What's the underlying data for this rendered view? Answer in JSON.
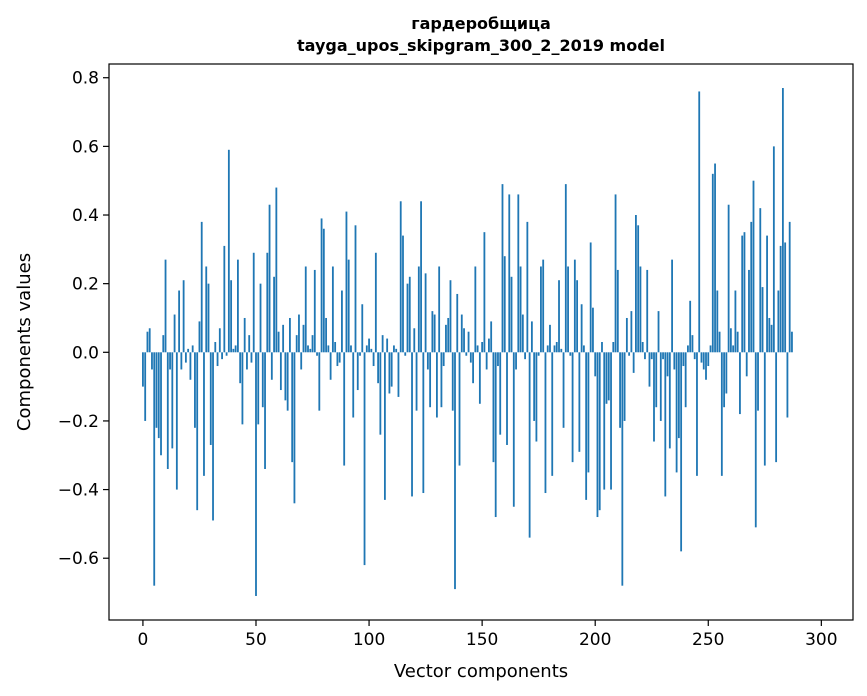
{
  "chart_data": {
    "type": "bar",
    "title_lines": [
      "гардеробщица",
      "tayga_upos_skipgram_300_2_2019 model"
    ],
    "xlabel": "Vector components",
    "ylabel": "Components values",
    "xlim": [
      -15,
      314
    ],
    "ylim": [
      -0.78,
      0.84
    ],
    "x_ticks": [
      0,
      50,
      100,
      150,
      200,
      250,
      300
    ],
    "y_ticks": [
      -0.6,
      -0.4,
      -0.2,
      0.0,
      0.2,
      0.4,
      0.6,
      0.8
    ],
    "x_tick_labels": [
      "0",
      "50",
      "100",
      "150",
      "200",
      "250",
      "300"
    ],
    "y_tick_labels": [
      "−0.6",
      "−0.4",
      "−0.2",
      "0.0",
      "0.2",
      "0.4",
      "0.6",
      "0.8"
    ],
    "bar_color": "#1f77b4",
    "values": [
      -0.1,
      -0.2,
      0.06,
      0.07,
      -0.05,
      -0.68,
      -0.22,
      -0.25,
      -0.3,
      0.05,
      0.27,
      -0.34,
      -0.05,
      -0.28,
      0.11,
      -0.4,
      0.18,
      -0.05,
      0.21,
      -0.03,
      0.01,
      -0.08,
      0.02,
      -0.22,
      -0.46,
      0.09,
      0.38,
      -0.36,
      0.25,
      0.2,
      -0.27,
      -0.49,
      0.03,
      -0.04,
      0.07,
      -0.02,
      0.31,
      -0.01,
      0.59,
      0.21,
      0.01,
      0.02,
      0.27,
      -0.09,
      -0.21,
      0.1,
      -0.05,
      0.05,
      -0.03,
      0.29,
      -0.71,
      -0.21,
      0.2,
      -0.16,
      -0.34,
      0.29,
      0.43,
      -0.08,
      0.22,
      0.48,
      0.06,
      -0.11,
      0.08,
      -0.14,
      -0.17,
      0.1,
      -0.32,
      -0.44,
      0.05,
      0.11,
      -0.05,
      0.08,
      0.25,
      0.02,
      0.01,
      0.05,
      0.24,
      -0.01,
      -0.17,
      0.39,
      0.36,
      0.1,
      0.02,
      -0.08,
      0.25,
      0.03,
      -0.04,
      -0.03,
      0.18,
      -0.33,
      0.41,
      0.27,
      0.02,
      -0.19,
      0.37,
      -0.11,
      -0.01,
      0.14,
      -0.62,
      0.02,
      0.04,
      0.01,
      -0.04,
      0.29,
      -0.09,
      -0.24,
      0.05,
      -0.43,
      0.04,
      -0.12,
      -0.1,
      0.02,
      0.01,
      -0.13,
      0.44,
      0.34,
      -0.01,
      0.2,
      0.22,
      -0.42,
      0.07,
      -0.17,
      0.25,
      0.44,
      -0.41,
      0.23,
      -0.05,
      -0.16,
      0.12,
      0.11,
      -0.19,
      0.25,
      -0.16,
      -0.04,
      0.08,
      0.1,
      0.21,
      -0.17,
      -0.69,
      0.17,
      -0.33,
      0.11,
      0.07,
      -0.01,
      0.06,
      -0.03,
      -0.09,
      0.25,
      0.02,
      -0.15,
      0.03,
      0.35,
      -0.05,
      0.04,
      0.09,
      -0.32,
      -0.48,
      -0.04,
      -0.24,
      0.49,
      0.28,
      -0.27,
      0.46,
      0.22,
      -0.45,
      -0.05,
      0.46,
      0.25,
      0.11,
      -0.02,
      0.38,
      -0.54,
      0.09,
      -0.2,
      -0.26,
      -0.01,
      0.25,
      0.27,
      -0.41,
      0.02,
      0.08,
      -0.36,
      0.02,
      0.03,
      0.21,
      0.01,
      -0.22,
      0.49,
      0.25,
      -0.01,
      -0.32,
      0.27,
      0.21,
      -0.29,
      0.14,
      0.02,
      -0.43,
      -0.35,
      0.32,
      0.13,
      -0.07,
      -0.48,
      -0.46,
      0.03,
      -0.4,
      -0.15,
      -0.14,
      -0.4,
      0.03,
      0.46,
      0.24,
      -0.22,
      -0.68,
      -0.2,
      0.1,
      -0.01,
      0.12,
      -0.06,
      0.4,
      0.37,
      0.25,
      0.03,
      -0.02,
      0.24,
      -0.1,
      -0.02,
      -0.26,
      -0.16,
      0.12,
      -0.2,
      -0.02,
      -0.42,
      -0.07,
      -0.28,
      0.27,
      -0.05,
      -0.35,
      -0.25,
      -0.58,
      -0.04,
      -0.16,
      0.02,
      0.15,
      0.05,
      -0.02,
      -0.36,
      0.76,
      -0.03,
      -0.05,
      -0.08,
      -0.04,
      0.02,
      0.52,
      0.55,
      0.18,
      0.06,
      -0.36,
      -0.16,
      -0.12,
      0.43,
      0.07,
      0.02,
      0.18,
      0.06,
      -0.18,
      0.34,
      0.35,
      -0.07,
      0.24,
      0.38,
      0.5,
      -0.51,
      -0.17,
      0.42,
      0.19,
      -0.33,
      0.34,
      0.1,
      0.08,
      0.6,
      -0.32,
      0.18,
      0.31,
      0.77,
      0.32,
      -0.19,
      0.38,
      0.06
    ]
  }
}
